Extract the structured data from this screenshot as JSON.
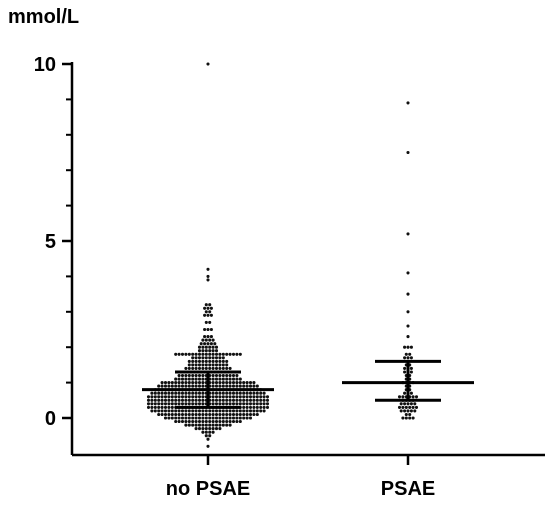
{
  "chart_data": {
    "type": "scatter",
    "subtype": "dot-plot with median and interquartile range bars",
    "unit_label": "mmol/L",
    "ylim": [
      -0.9,
      10
    ],
    "yticks": [
      0,
      5,
      10
    ],
    "ytick_labels": [
      "0",
      "5",
      "10"
    ],
    "minor_yticks": [
      1,
      2,
      3,
      4,
      6,
      7,
      8,
      9
    ],
    "categories": [
      "no PSAE",
      "PSAE"
    ],
    "series": [
      {
        "category": "no PSAE",
        "median": 0.8,
        "q1": 0.3,
        "q3": 1.3,
        "approx_n": 450,
        "values_density": [
          {
            "y": -0.8,
            "n": 1
          },
          {
            "y": -0.6,
            "n": 1
          },
          {
            "y": -0.5,
            "n": 2
          },
          {
            "y": -0.4,
            "n": 4
          },
          {
            "y": -0.3,
            "n": 8
          },
          {
            "y": -0.2,
            "n": 14
          },
          {
            "y": -0.1,
            "n": 20
          },
          {
            "y": 0.0,
            "n": 26
          },
          {
            "y": 0.1,
            "n": 30
          },
          {
            "y": 0.2,
            "n": 34
          },
          {
            "y": 0.3,
            "n": 36
          },
          {
            "y": 0.4,
            "n": 36
          },
          {
            "y": 0.5,
            "n": 36
          },
          {
            "y": 0.6,
            "n": 36
          },
          {
            "y": 0.7,
            "n": 34
          },
          {
            "y": 0.8,
            "n": 32
          },
          {
            "y": 0.9,
            "n": 30
          },
          {
            "y": 1.0,
            "n": 28
          },
          {
            "y": 1.1,
            "n": 20
          },
          {
            "y": 1.2,
            "n": 18
          },
          {
            "y": 1.3,
            "n": 16
          },
          {
            "y": 1.4,
            "n": 14
          },
          {
            "y": 1.5,
            "n": 12
          },
          {
            "y": 1.6,
            "n": 12
          },
          {
            "y": 1.7,
            "n": 10
          },
          {
            "y": 1.8,
            "n": 20
          },
          {
            "y": 1.9,
            "n": 6
          },
          {
            "y": 2.0,
            "n": 6
          },
          {
            "y": 2.1,
            "n": 5
          },
          {
            "y": 2.2,
            "n": 4
          },
          {
            "y": 2.3,
            "n": 3
          },
          {
            "y": 2.5,
            "n": 3
          },
          {
            "y": 2.7,
            "n": 2
          },
          {
            "y": 2.9,
            "n": 3
          },
          {
            "y": 3.0,
            "n": 2
          },
          {
            "y": 3.1,
            "n": 3
          },
          {
            "y": 3.2,
            "n": 2
          },
          {
            "y": 3.9,
            "n": 1
          },
          {
            "y": 4.0,
            "n": 1
          },
          {
            "y": 4.2,
            "n": 1
          },
          {
            "y": 10.0,
            "n": 1
          }
        ]
      },
      {
        "category": "PSAE",
        "median": 1.0,
        "q1": 0.5,
        "q3": 1.6,
        "approx_n": 60,
        "values_density": [
          {
            "y": 0.0,
            "n": 4
          },
          {
            "y": 0.1,
            "n": 2
          },
          {
            "y": 0.2,
            "n": 5
          },
          {
            "y": 0.3,
            "n": 6
          },
          {
            "y": 0.4,
            "n": 5
          },
          {
            "y": 0.5,
            "n": 4
          },
          {
            "y": 0.6,
            "n": 6
          },
          {
            "y": 0.7,
            "n": 3
          },
          {
            "y": 0.8,
            "n": 2
          },
          {
            "y": 0.9,
            "n": 2
          },
          {
            "y": 1.0,
            "n": 4
          },
          {
            "y": 1.1,
            "n": 2
          },
          {
            "y": 1.2,
            "n": 2
          },
          {
            "y": 1.3,
            "n": 3
          },
          {
            "y": 1.4,
            "n": 3
          },
          {
            "y": 1.5,
            "n": 2
          },
          {
            "y": 1.7,
            "n": 3
          },
          {
            "y": 1.8,
            "n": 2
          },
          {
            "y": 2.0,
            "n": 3
          },
          {
            "y": 2.3,
            "n": 1
          },
          {
            "y": 2.6,
            "n": 1
          },
          {
            "y": 3.0,
            "n": 1
          },
          {
            "y": 3.5,
            "n": 1
          },
          {
            "y": 4.1,
            "n": 1
          },
          {
            "y": 5.2,
            "n": 1
          },
          {
            "y": 7.5,
            "n": 1
          },
          {
            "y": 8.9,
            "n": 1
          }
        ]
      }
    ],
    "colors": {
      "points": "#111111",
      "axes": "#000000",
      "bars": "#000000"
    },
    "grid": false,
    "legend": "none"
  }
}
